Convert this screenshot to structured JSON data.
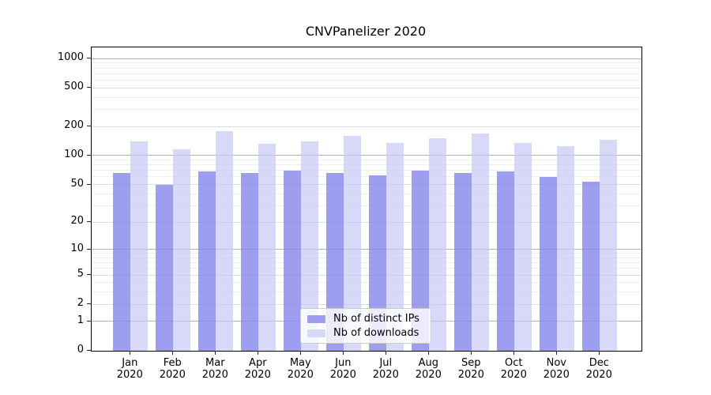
{
  "title": "CNVPanelizer 2020",
  "chart_data": {
    "type": "bar",
    "title": "CNVPanelizer 2020",
    "y_scale": "log1p",
    "grid": "on",
    "legend_position": "bottom-center-inside",
    "xlabel": "",
    "ylabel": "",
    "ylim": [
      0,
      1308
    ],
    "y_ticks": [
      0,
      1,
      2,
      5,
      10,
      20,
      50,
      100,
      200,
      500,
      1000
    ],
    "categories": [
      "Jan 2020",
      "Feb 2020",
      "Mar 2020",
      "Apr 2020",
      "May 2020",
      "Jun 2020",
      "Jul 2020",
      "Aug 2020",
      "Sep 2020",
      "Oct 2020",
      "Nov 2020",
      "Dec 2020"
    ],
    "series": [
      {
        "name": "Nb of distinct IPs",
        "color": "rgba(134,134,238,0.8)",
        "legend_color": "#9e9ef1",
        "values": [
          66,
          50,
          68,
          66,
          70,
          66,
          62,
          70,
          66,
          68,
          60,
          54
        ]
      },
      {
        "name": "Nb of downloads",
        "color": "rgba(196,196,246,0.66)",
        "legend_color": "#d8d8f9",
        "values": [
          140,
          117,
          180,
          133,
          141,
          160,
          135,
          151,
          170,
          136,
          125,
          147
        ]
      }
    ],
    "grid_colors": {
      "major": "#b2b2b2",
      "mid": "#dcdcdc",
      "minor": "#efefef"
    }
  }
}
